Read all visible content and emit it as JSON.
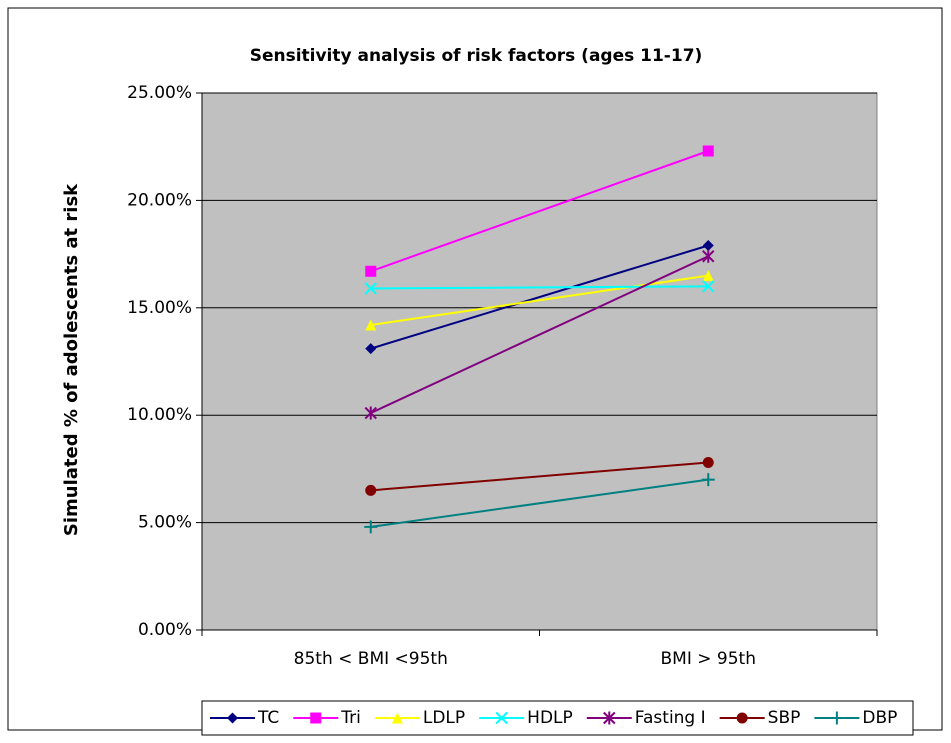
{
  "chart_data": {
    "type": "line",
    "title": "Sensitivity analysis of risk factors (ages 11-17)",
    "y_label": "Simulated % of adolescents at risk",
    "categories": [
      "85th < BMI <95th",
      "BMI > 95th"
    ],
    "series": [
      {
        "name": "TC",
        "color": "#000080",
        "marker": "diamond",
        "values": [
          13.1,
          17.9
        ]
      },
      {
        "name": "Tri",
        "color": "#ff00ff",
        "marker": "square",
        "values": [
          16.7,
          22.3
        ]
      },
      {
        "name": "LDLP",
        "color": "#ffff00",
        "marker": "triangle",
        "values": [
          14.2,
          16.5
        ]
      },
      {
        "name": "HDLP",
        "color": "#00ffff",
        "marker": "x",
        "values": [
          15.9,
          16.0
        ]
      },
      {
        "name": "Fasting I",
        "color": "#800080",
        "marker": "star",
        "values": [
          10.1,
          17.4
        ]
      },
      {
        "name": "SBP",
        "color": "#800000",
        "marker": "circle",
        "values": [
          6.5,
          7.8
        ]
      },
      {
        "name": "DBP",
        "color": "#008080",
        "marker": "plus",
        "values": [
          4.8,
          7.0
        ]
      }
    ],
    "ylim": [
      0,
      25
    ],
    "yticks": [
      {
        "value": 0,
        "label": "0.00%"
      },
      {
        "value": 5,
        "label": "5.00%"
      },
      {
        "value": 10,
        "label": "10.00%"
      },
      {
        "value": 15,
        "label": "15.00%"
      },
      {
        "value": 20,
        "label": "20.00%"
      },
      {
        "value": 25,
        "label": "25.00%"
      }
    ],
    "grid": true,
    "legend": "bottom",
    "plot_background": "#c0c0c0"
  }
}
